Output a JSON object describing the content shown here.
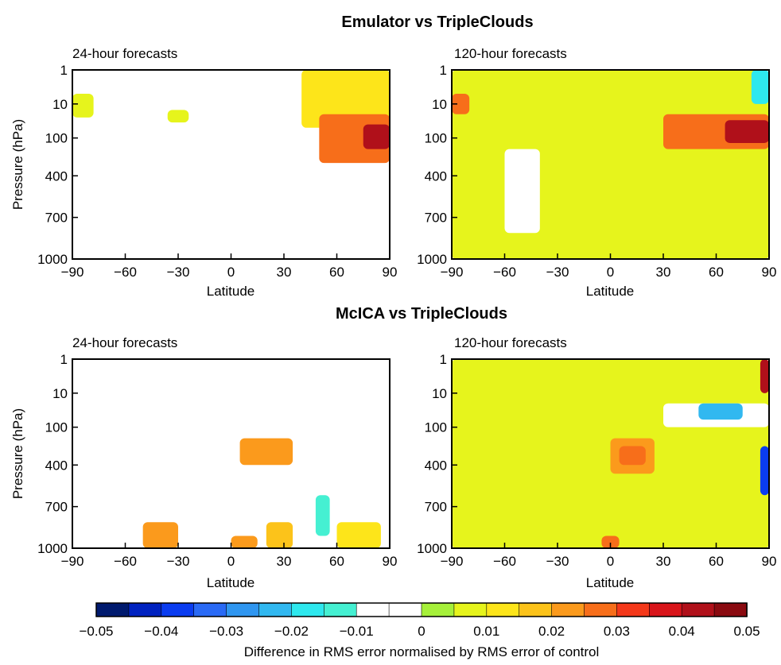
{
  "figure": {
    "colorbar": {
      "ticks": [
        "−0.05",
        "−0.04",
        "−0.03",
        "−0.02",
        "−0.01",
        "0",
        "0.01",
        "0.02",
        "0.03",
        "0.04",
        "0.05"
      ],
      "colors": [
        "#001a6e",
        "#0022c0",
        "#0a3cf0",
        "#2a6af5",
        "#2f96f0",
        "#31b8f0",
        "#2ee8ee",
        "#45f0d2",
        "#ffffff",
        "#ffffff",
        "#a6f03a",
        "#e6f41c",
        "#fde51a",
        "#fcc31a",
        "#fb9a1c",
        "#f76e1a",
        "#f4381a",
        "#d8141a",
        "#b0101a",
        "#8a0a10"
      ],
      "label": "Difference in RMS error normalised by RMS error of control"
    }
  },
  "chart_data": [
    {
      "type": "heatmap",
      "group_title": "Emulator vs TripleClouds",
      "title": "24-hour forecasts",
      "xlabel": "Latitude",
      "ylabel": "Pressure (hPa)",
      "xlim": [
        -90,
        90
      ],
      "ylim": [
        1000,
        1
      ],
      "x_ticks": [
        "−90",
        "−60",
        "−30",
        "0",
        "30",
        "60",
        "90"
      ],
      "y_ticks": [
        "1",
        "10",
        "100",
        "400",
        "700",
        "1000"
      ],
      "regions": [
        {
          "lat": [
            -90,
            -78
          ],
          "p": [
            5,
            25
          ],
          "value": 0.008
        },
        {
          "lat": [
            -84,
            -72
          ],
          "p": [
            200,
            500
          ],
          "value": -0.008
        },
        {
          "lat": [
            -36,
            -24
          ],
          "p": [
            15,
            35
          ],
          "value": 0.008
        },
        {
          "lat": [
            -12,
            6
          ],
          "p": [
            200,
            350
          ],
          "value": -0.009
        },
        {
          "lat": [
            24,
            30
          ],
          "p": [
            850,
            950
          ],
          "value": -0.008
        },
        {
          "lat": [
            40,
            90
          ],
          "p": [
            1,
            50
          ],
          "value": 0.012
        },
        {
          "lat": [
            50,
            90
          ],
          "p": [
            20,
            250
          ],
          "value": 0.025
        },
        {
          "lat": [
            75,
            90
          ],
          "p": [
            40,
            150
          ],
          "value": 0.04
        }
      ]
    },
    {
      "type": "heatmap",
      "group_title": "Emulator vs TripleClouds",
      "title": "120-hour forecasts",
      "xlabel": "Latitude",
      "ylabel": "Pressure (hPa)",
      "xlim": [
        -90,
        90
      ],
      "ylim": [
        1000,
        1
      ],
      "x_ticks": [
        "−90",
        "−60",
        "−30",
        "0",
        "30",
        "60",
        "90"
      ],
      "y_ticks": [
        "1",
        "10",
        "100",
        "400",
        "700",
        "1000"
      ],
      "regions": [
        {
          "lat": [
            -90,
            90
          ],
          "p": [
            1,
            1000
          ],
          "value": 0.006
        },
        {
          "lat": [
            -90,
            -80
          ],
          "p": [
            5,
            20
          ],
          "value": 0.03
        },
        {
          "lat": [
            -50,
            -30
          ],
          "p": [
            50,
            150
          ],
          "value": 0.008
        },
        {
          "lat": [
            -10,
            20
          ],
          "p": [
            20,
            60
          ],
          "value": 0.009
        },
        {
          "lat": [
            30,
            90
          ],
          "p": [
            20,
            150
          ],
          "value": 0.03
        },
        {
          "lat": [
            65,
            90
          ],
          "p": [
            30,
            120
          ],
          "value": 0.04
        },
        {
          "lat": [
            -60,
            -40
          ],
          "p": [
            150,
            800
          ],
          "value": -0.009
        },
        {
          "lat": [
            80,
            90
          ],
          "p": [
            1,
            10
          ],
          "value": -0.02
        }
      ]
    },
    {
      "type": "heatmap",
      "group_title": "McICA vs TripleClouds",
      "title": "24-hour forecasts",
      "xlabel": "Latitude",
      "ylabel": "Pressure (hPa)",
      "xlim": [
        -90,
        90
      ],
      "ylim": [
        1000,
        1
      ],
      "x_ticks": [
        "−90",
        "−60",
        "−30",
        "0",
        "30",
        "60",
        "90"
      ],
      "y_ticks": [
        "1",
        "10",
        "100",
        "400",
        "700",
        "1000"
      ],
      "regions": [
        {
          "lat": [
            30,
            90
          ],
          "p": [
            5,
            100
          ],
          "value": -0.008
        },
        {
          "lat": [
            5,
            35
          ],
          "p": [
            150,
            400
          ],
          "value": 0.02
        },
        {
          "lat": [
            -50,
            -30
          ],
          "p": [
            800,
            1000
          ],
          "value": 0.02
        },
        {
          "lat": [
            -15,
            -5
          ],
          "p": [
            900,
            1000
          ],
          "value": -0.009
        },
        {
          "lat": [
            0,
            15
          ],
          "p": [
            900,
            1000
          ],
          "value": 0.02
        },
        {
          "lat": [
            20,
            35
          ],
          "p": [
            800,
            1000
          ],
          "value": 0.015
        },
        {
          "lat": [
            48,
            56
          ],
          "p": [
            600,
            900
          ],
          "value": -0.01
        },
        {
          "lat": [
            60,
            85
          ],
          "p": [
            800,
            1000
          ],
          "value": 0.012
        },
        {
          "lat": [
            -85,
            -78
          ],
          "p": [
            250,
            350
          ],
          "value": -0.008
        }
      ]
    },
    {
      "type": "heatmap",
      "group_title": "McICA vs TripleClouds",
      "title": "120-hour forecasts",
      "xlabel": "Latitude",
      "ylabel": "Pressure (hPa)",
      "xlim": [
        -90,
        90
      ],
      "ylim": [
        1000,
        1
      ],
      "x_ticks": [
        "−90",
        "−60",
        "−30",
        "0",
        "30",
        "60",
        "90"
      ],
      "y_ticks": [
        "1",
        "10",
        "100",
        "400",
        "700",
        "1000"
      ],
      "regions": [
        {
          "lat": [
            -90,
            90
          ],
          "p": [
            1,
            1000
          ],
          "value": 0.006
        },
        {
          "lat": [
            0,
            25
          ],
          "p": [
            150,
            450
          ],
          "value": 0.02
        },
        {
          "lat": [
            5,
            20
          ],
          "p": [
            200,
            400
          ],
          "value": 0.03
        },
        {
          "lat": [
            30,
            90
          ],
          "p": [
            20,
            100
          ],
          "value": -0.009
        },
        {
          "lat": [
            50,
            75
          ],
          "p": [
            20,
            60
          ],
          "value": -0.025
        },
        {
          "lat": [
            85,
            90
          ],
          "p": [
            200,
            600
          ],
          "value": -0.04
        },
        {
          "lat": [
            85,
            90
          ],
          "p": [
            1,
            10
          ],
          "value": 0.04
        },
        {
          "lat": [
            -5,
            5
          ],
          "p": [
            900,
            1000
          ],
          "value": 0.03
        }
      ]
    }
  ]
}
